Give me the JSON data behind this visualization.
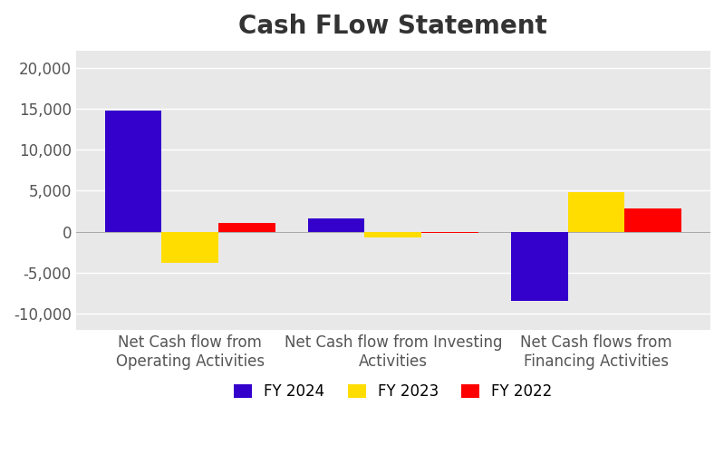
{
  "title": "Cash FLow Statement",
  "categories": [
    "Net Cash flow from\nOperating Activities",
    "Net Cash flow from Investing\nActivities",
    "Net Cash flows from\nFinancing Activities"
  ],
  "series": {
    "FY 2024": [
      14800,
      1600,
      -8500
    ],
    "FY 2023": [
      -3800,
      -700,
      4800
    ],
    "FY 2022": [
      1000,
      -200,
      2800
    ]
  },
  "colors": {
    "FY 2024": "#3300cc",
    "FY 2023": "#ffdd00",
    "FY 2022": "#ff0000"
  },
  "ylim": [
    -12000,
    22000
  ],
  "yticks": [
    -10000,
    -5000,
    0,
    5000,
    10000,
    15000,
    20000
  ],
  "bar_width": 0.28,
  "background_color": "#ffffff",
  "plot_bg_color": "#e8e8e8",
  "grid_color": "#ffffff",
  "title_fontsize": 20,
  "title_fontweight": "bold",
  "legend_fontsize": 12,
  "tick_fontsize": 12,
  "tick_color": "#555555"
}
